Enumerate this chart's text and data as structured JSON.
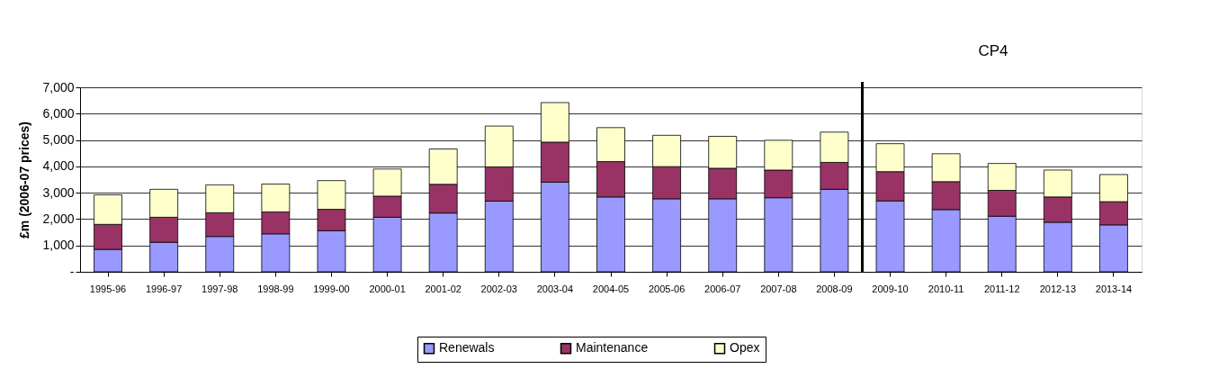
{
  "chart_data": {
    "type": "bar",
    "stacked": true,
    "categories": [
      "1995-96",
      "1996-97",
      "1997-98",
      "1998-99",
      "1999-00",
      "2000-01",
      "2001-02",
      "2002-03",
      "2003-04",
      "2004-05",
      "2005-06",
      "2006-07",
      "2007-08",
      "2008-09",
      "2009-10",
      "2010-11",
      "2011-12",
      "2012-13",
      "2013-14"
    ],
    "ylabel": "£m (2006-07 prices)",
    "series": [
      {
        "name": "Renewals",
        "color": "#9999ff",
        "values": [
          850,
          1120,
          1340,
          1440,
          1560,
          2070,
          2230,
          2680,
          3400,
          2840,
          2770,
          2770,
          2810,
          3130,
          2690,
          2360,
          2110,
          1880,
          1780
        ]
      },
      {
        "name": "Maintenance",
        "color": "#993366",
        "values": [
          950,
          950,
          900,
          830,
          810,
          800,
          1090,
          1300,
          1520,
          1340,
          1220,
          1160,
          1050,
          1020,
          1110,
          1060,
          980,
          960,
          880
        ]
      },
      {
        "name": "Opex",
        "color": "#ffffcc",
        "values": [
          1120,
          1060,
          1060,
          1060,
          1090,
          1030,
          1340,
          1550,
          1500,
          1290,
          1190,
          1210,
          1130,
          1150,
          1060,
          1060,
          1020,
          1020,
          1030
        ]
      }
    ],
    "ylim": [
      0,
      7000
    ],
    "yticks": [
      {
        "value": 0,
        "label": "-"
      },
      {
        "value": 1000,
        "label": "1,000"
      },
      {
        "value": 2000,
        "label": "2,000"
      },
      {
        "value": 3000,
        "label": "3,000"
      },
      {
        "value": 4000,
        "label": "4,000"
      },
      {
        "value": 5000,
        "label": "5,000"
      },
      {
        "value": 6000,
        "label": "6,000"
      },
      {
        "value": 7000,
        "label": "7,000"
      }
    ],
    "grid": "y",
    "legend": "bottom",
    "ref_lines": [
      {
        "axis": "x",
        "value": "2009-10",
        "label": null,
        "color": "#000000"
      }
    ],
    "annotations": [
      "CP4"
    ]
  }
}
